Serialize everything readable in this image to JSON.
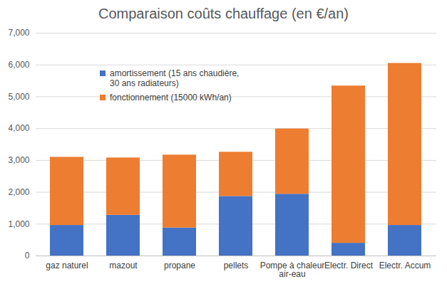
{
  "chart_data": {
    "type": "bar",
    "stacked": true,
    "title": "Comparaison coûts chauffage (en €/an)",
    "categories": [
      "gaz naturel",
      "mazout",
      "propane",
      "pellets",
      "Pompe à chaleur air-eau",
      "Electr. Direct",
      "Electr. Accum"
    ],
    "series": [
      {
        "name": "amortissement (15 ans chaudière, 30 ans radiateurs)",
        "color": "#4472c4",
        "values": [
          960,
          1280,
          880,
          1870,
          1940,
          400,
          960
        ]
      },
      {
        "name": "fonctionnement (15000 kWh/an)",
        "color": "#ed7d31",
        "values": [
          2140,
          1800,
          2290,
          1390,
          2050,
          4940,
          5090
        ]
      }
    ],
    "ylim": [
      0,
      7000
    ],
    "yticks": [
      0,
      1000,
      2000,
      3000,
      4000,
      5000,
      6000,
      7000
    ],
    "grid": true,
    "legend": "top-left"
  }
}
